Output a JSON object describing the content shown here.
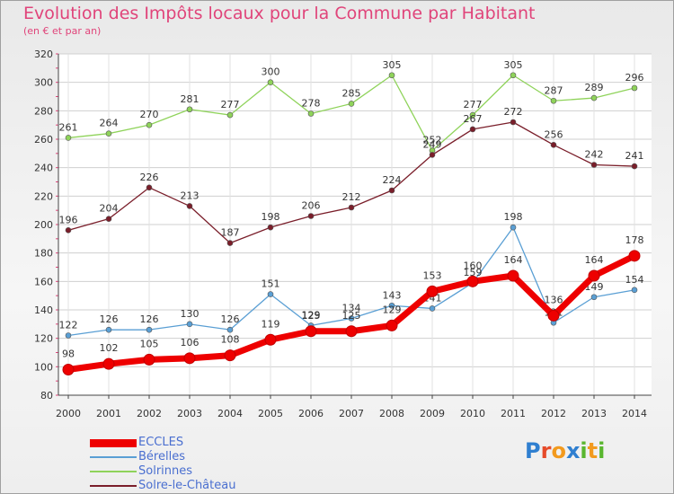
{
  "title": "Evolution des Impôts locaux pour la Commune par Habitant",
  "subtitle": "(en € et par an)",
  "logo": "Proxiti",
  "chart_data": {
    "type": "line",
    "x": [
      "2000",
      "2001",
      "2002",
      "2003",
      "2004",
      "2005",
      "2006",
      "2007",
      "2008",
      "2009",
      "2010",
      "2011",
      "2012",
      "2013",
      "2014"
    ],
    "ylim": [
      80,
      320
    ],
    "yticks": [
      80,
      100,
      120,
      140,
      160,
      180,
      200,
      220,
      240,
      260,
      280,
      300,
      320
    ],
    "grid": true,
    "legend_position": "bottom-left",
    "series": [
      {
        "name": "ECCLES",
        "color": "#ee0000",
        "values": [
          98,
          102,
          105,
          106,
          108,
          119,
          125,
          125,
          129,
          153,
          160,
          164,
          136,
          164,
          178
        ]
      },
      {
        "name": "Bérelles",
        "color": "#5a9fd4",
        "values": [
          122,
          126,
          126,
          130,
          126,
          151,
          129,
          134,
          143,
          141,
          159,
          198,
          131,
          149,
          154
        ]
      },
      {
        "name": "Solrinnes",
        "color": "#8fd35a",
        "values": [
          261,
          264,
          270,
          281,
          277,
          300,
          278,
          285,
          305,
          252,
          277,
          305,
          287,
          289,
          296
        ]
      },
      {
        "name": "Solre-le-Château",
        "color": "#7a1e2a",
        "values": [
          196,
          204,
          226,
          213,
          187,
          198,
          206,
          212,
          224,
          249,
          267,
          272,
          256,
          242,
          241
        ]
      }
    ]
  }
}
